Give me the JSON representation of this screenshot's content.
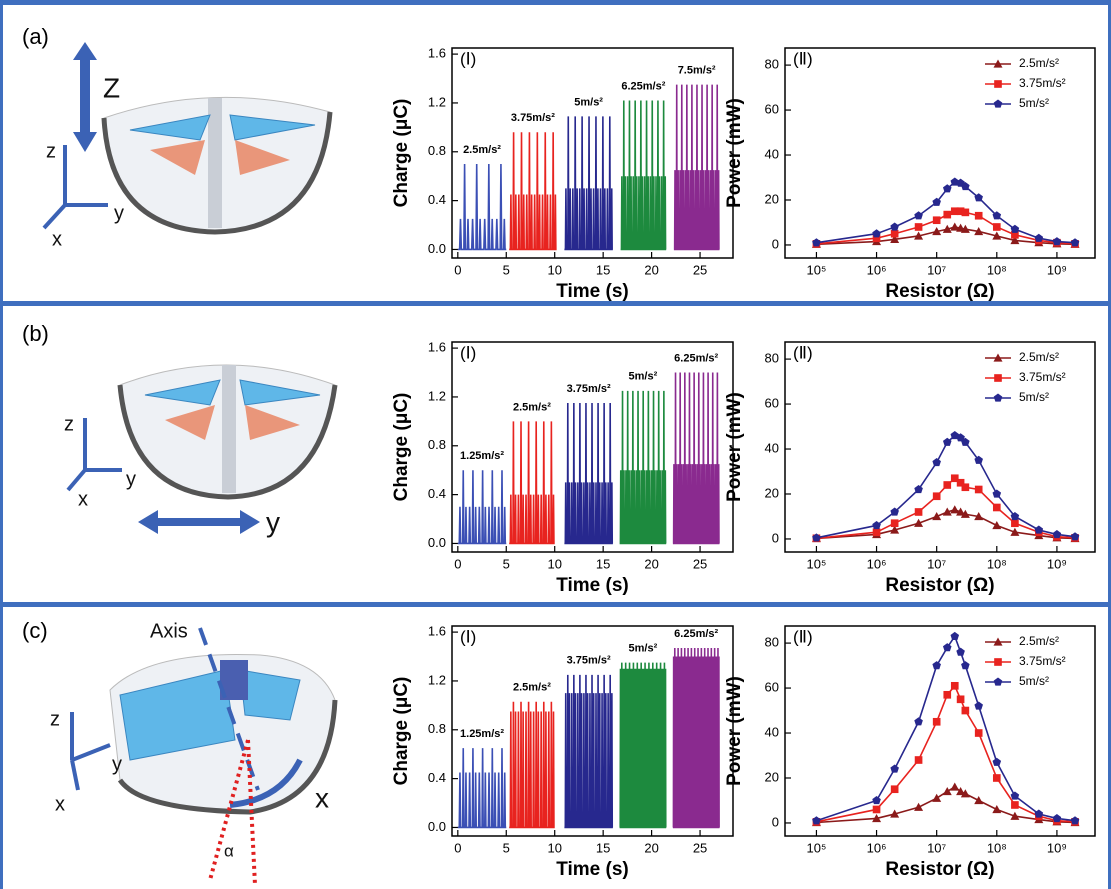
{
  "panels": [
    {
      "label": "(a)",
      "illustration_labels": [
        "Z",
        "z",
        "y",
        "x"
      ]
    },
    {
      "label": "(b)",
      "illustration_labels": [
        "z",
        "y",
        "x",
        "y"
      ]
    },
    {
      "label": "(c)",
      "illustration_labels": [
        "Axis",
        "z",
        "y",
        "x",
        "x",
        "α"
      ]
    }
  ],
  "chart_data": [
    {
      "type": "charge",
      "panel_label": "(Ⅰ)",
      "xlabel": "Time (s)",
      "ylabel": "Charge (μC)",
      "xlim": [
        -0.6,
        28.4
      ],
      "xticks": [
        0,
        5,
        10,
        15,
        20,
        25
      ],
      "ylim": [
        -0.07,
        1.65
      ],
      "yticks": [
        {
          "value": 0,
          "label": "0.0"
        },
        0.4,
        0.8,
        1.2,
        1.6
      ],
      "series": [
        {
          "name": "2.5m/s²",
          "color": "#3b4fb5",
          "time_range": [
            0,
            5
          ],
          "peak": 0.7,
          "minor": 0.25,
          "pulses": 4
        },
        {
          "name": "3.75m/s²",
          "color": "#e8231f",
          "time_range": [
            5.3,
            10.2
          ],
          "peak": 0.96,
          "minor": 0.45,
          "pulses": 6
        },
        {
          "name": "5m/s²",
          "color": "#27288e",
          "time_range": [
            11,
            16
          ],
          "peak": 1.09,
          "minor": 0.5,
          "pulses": 7
        },
        {
          "name": "6.25m/s²",
          "color": "#1d8a3e",
          "time_range": [
            16.8,
            21.5
          ],
          "peak": 1.22,
          "minor": 0.6,
          "pulses": 8
        },
        {
          "name": "7.5m/s²",
          "color": "#8a2a8f",
          "time_range": [
            22.3,
            27
          ],
          "peak": 1.35,
          "minor": 0.65,
          "pulses": 9
        }
      ]
    },
    {
      "type": "power",
      "panel_label": "(Ⅱ)",
      "xlabel": "Resistor (Ω)",
      "ylabel": "Power (mW)",
      "log_x": true,
      "legend": "upper right",
      "x": [
        100000,
        1000000,
        2000000,
        5000000,
        10000000,
        15000000,
        20000000,
        25000000,
        30000000,
        50000000,
        100000000,
        200000000,
        500000000,
        1000000000,
        2000000000
      ],
      "xlim": [
        30000,
        4300000000
      ],
      "xticks": [
        {
          "value": 100000,
          "label": "10⁵"
        },
        {
          "value": 1000000,
          "label": "10⁶"
        },
        {
          "value": 10000000,
          "label": "10⁷"
        },
        {
          "value": 100000000,
          "label": "10⁸"
        },
        {
          "value": 1000000000,
          "label": "10⁹"
        }
      ],
      "ylim": [
        -5.8,
        87.6
      ],
      "yticks": [
        0,
        20,
        40,
        60,
        80
      ],
      "series": [
        {
          "name": "2.5m/s²",
          "color": "#8b1a1a",
          "marker": "triangle",
          "values": [
            0.3,
            1.5,
            2.5,
            4,
            6,
            7,
            8,
            7.5,
            7,
            6,
            4,
            2,
            1,
            0.5,
            0.3
          ]
        },
        {
          "name": "3.75m/s²",
          "color": "#e8231f",
          "marker": "square",
          "values": [
            0.5,
            3,
            5,
            8,
            11,
            13.5,
            15,
            15,
            14.5,
            13,
            8,
            4.5,
            2,
            1,
            0.5
          ]
        },
        {
          "name": "5m/s²",
          "color": "#27288e",
          "marker": "pentagon",
          "values": [
            1,
            5,
            8,
            13,
            19,
            25,
            28,
            27.5,
            26,
            21,
            13,
            7,
            3,
            1.5,
            1
          ]
        }
      ]
    },
    {
      "type": "charge",
      "panel_label": "(Ⅰ)",
      "xlabel": "Time (s)",
      "ylabel": "Charge (μC)",
      "xlim": [
        -0.6,
        28.4
      ],
      "xticks": [
        0,
        5,
        10,
        15,
        20,
        25
      ],
      "ylim": [
        -0.07,
        1.65
      ],
      "yticks": [
        {
          "value": 0,
          "label": "0.0"
        },
        0.4,
        0.8,
        1.2,
        1.6
      ],
      "series": [
        {
          "name": "1.25m/s²",
          "color": "#3b4fb5",
          "time_range": [
            0,
            5
          ],
          "peak": 0.6,
          "minor": 0.3,
          "pulses": 5
        },
        {
          "name": "2.5m/s²",
          "color": "#e8231f",
          "time_range": [
            5.3,
            10
          ],
          "peak": 1.0,
          "minor": 0.4,
          "pulses": 6
        },
        {
          "name": "3.75m/s²",
          "color": "#27288e",
          "time_range": [
            11,
            16
          ],
          "peak": 1.15,
          "minor": 0.5,
          "pulses": 8
        },
        {
          "name": "5m/s²",
          "color": "#1d8a3e",
          "time_range": [
            16.7,
            21.5
          ],
          "peak": 1.25,
          "minor": 0.6,
          "pulses": 9
        },
        {
          "name": "6.25m/s²",
          "color": "#8a2a8f",
          "time_range": [
            22.2,
            27
          ],
          "peak": 1.4,
          "minor": 0.65,
          "pulses": 10
        }
      ]
    },
    {
      "type": "power",
      "panel_label": "(Ⅱ)",
      "xlabel": "Resistor (Ω)",
      "ylabel": "Power (mW)",
      "log_x": true,
      "legend": "upper right",
      "x": [
        100000,
        1000000,
        2000000,
        5000000,
        10000000,
        15000000,
        20000000,
        25000000,
        30000000,
        50000000,
        100000000,
        200000000,
        500000000,
        1000000000,
        2000000000
      ],
      "xlim": [
        30000,
        4300000000
      ],
      "xticks": [
        {
          "value": 100000,
          "label": "10⁵"
        },
        {
          "value": 1000000,
          "label": "10⁶"
        },
        {
          "value": 10000000,
          "label": "10⁷"
        },
        {
          "value": 100000000,
          "label": "10⁸"
        },
        {
          "value": 1000000000,
          "label": "10⁹"
        }
      ],
      "ylim": [
        -5.8,
        87.6
      ],
      "yticks": [
        0,
        20,
        40,
        60,
        80
      ],
      "series": [
        {
          "name": "2.5m/s²",
          "color": "#8b1a1a",
          "marker": "triangle",
          "values": [
            0.2,
            2,
            4,
            7,
            10,
            12,
            13,
            12,
            11,
            10,
            6,
            3,
            1.5,
            0.5,
            0.2
          ]
        },
        {
          "name": "3.75m/s²",
          "color": "#e8231f",
          "marker": "square",
          "values": [
            0.3,
            3,
            7,
            12,
            19,
            24,
            27,
            25,
            23,
            22,
            14,
            7,
            3,
            1,
            0.5
          ]
        },
        {
          "name": "5m/s²",
          "color": "#27288e",
          "marker": "pentagon",
          "values": [
            0.5,
            6,
            12,
            22,
            34,
            43,
            46,
            45,
            43,
            35,
            20,
            10,
            4,
            2,
            1
          ]
        }
      ]
    },
    {
      "type": "charge",
      "panel_label": "(Ⅰ)",
      "xlabel": "Time (s)",
      "ylabel": "Charge (μC)",
      "xlim": [
        -0.6,
        28.4
      ],
      "xticks": [
        0,
        5,
        10,
        15,
        20,
        25
      ],
      "ylim": [
        -0.07,
        1.65
      ],
      "yticks": [
        {
          "value": 0,
          "label": "0.0"
        },
        0.4,
        0.8,
        1.2,
        1.6
      ],
      "series": [
        {
          "name": "1.25m/s²",
          "color": "#3b4fb5",
          "time_range": [
            0,
            5
          ],
          "peak": 0.65,
          "minor": 0.45,
          "pulses": 5
        },
        {
          "name": "2.5m/s²",
          "color": "#e8231f",
          "time_range": [
            5.3,
            10
          ],
          "peak": 1.03,
          "minor": 0.95,
          "pulses": 6
        },
        {
          "name": "3.75m/s²",
          "color": "#27288e",
          "time_range": [
            11,
            16
          ],
          "peak": 1.25,
          "minor": 1.1,
          "pulses": 8
        },
        {
          "name": "5m/s²",
          "color": "#1d8a3e",
          "time_range": [
            16.7,
            21.5
          ],
          "peak": 1.35,
          "minor": 1.3,
          "pulses": 12
        },
        {
          "name": "6.25m/s²",
          "color": "#8a2a8f",
          "time_range": [
            22.2,
            27
          ],
          "peak": 1.47,
          "minor": 1.4,
          "pulses": 14
        }
      ]
    },
    {
      "type": "power",
      "panel_label": "(Ⅱ)",
      "xlabel": "Resistor (Ω)",
      "ylabel": "Power (mW)",
      "log_x": true,
      "legend": "upper right",
      "x": [
        100000,
        1000000,
        2000000,
        5000000,
        10000000,
        15000000,
        20000000,
        25000000,
        30000000,
        50000000,
        100000000,
        200000000,
        500000000,
        1000000000,
        2000000000
      ],
      "xlim": [
        30000,
        4300000000
      ],
      "xticks": [
        {
          "value": 100000,
          "label": "10⁵"
        },
        {
          "value": 1000000,
          "label": "10⁶"
        },
        {
          "value": 10000000,
          "label": "10⁷"
        },
        {
          "value": 100000000,
          "label": "10⁸"
        },
        {
          "value": 1000000000,
          "label": "10⁹"
        }
      ],
      "ylim": [
        -5.8,
        87.6
      ],
      "yticks": [
        0,
        20,
        40,
        60,
        80
      ],
      "series": [
        {
          "name": "2.5m/s²",
          "color": "#8b1a1a",
          "marker": "triangle",
          "values": [
            0.2,
            2,
            4,
            7,
            11,
            14,
            16,
            14,
            13,
            10,
            6,
            3,
            1.5,
            0.5,
            0.2
          ]
        },
        {
          "name": "3.75m/s²",
          "color": "#e8231f",
          "marker": "square",
          "values": [
            0.5,
            6,
            15,
            28,
            45,
            57,
            61,
            55,
            50,
            40,
            20,
            8,
            3,
            1,
            0.5
          ]
        },
        {
          "name": "5m/s²",
          "color": "#27288e",
          "marker": "pentagon",
          "values": [
            1,
            10,
            24,
            45,
            70,
            78,
            83,
            76,
            70,
            52,
            27,
            12,
            4,
            2,
            1
          ]
        }
      ]
    }
  ]
}
